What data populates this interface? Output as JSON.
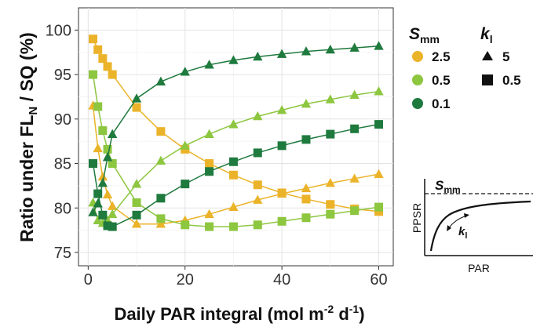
{
  "chart_data": {
    "type": "line",
    "ylabel_main": "Ratio under FL",
    "ylabel_sub": "N",
    "ylabel_tail": " / SQ (%)",
    "xlabel_main": "Daily PAR integral (mol m",
    "xlabel_sup1": "-2",
    "xlabel_mid": " d",
    "xlabel_sup2": "-1",
    "xlabel_end": ")",
    "xlim": [
      -2,
      63
    ],
    "ylim": [
      73.5,
      102.5
    ],
    "xticks": [
      0,
      20,
      40,
      60
    ],
    "yticks": [
      75,
      80,
      85,
      90,
      95,
      100
    ],
    "grid": true,
    "legend_placement": "right",
    "legend": {
      "smm_title": "S",
      "smm_sub": "mm",
      "smm_entries": [
        {
          "label": "2.5",
          "color": "#EBB329"
        },
        {
          "label": "0.5",
          "color": "#8DC63F"
        },
        {
          "label": "0.1",
          "color": "#1F7A3E"
        }
      ],
      "kl_title": "k",
      "kl_sub": "l",
      "kl_entries": [
        {
          "label": "5",
          "shape": "triangle"
        },
        {
          "label": "0.5",
          "shape": "square"
        }
      ]
    },
    "series": [
      {
        "smm": "2.5",
        "kl": "5",
        "color": "#EBB329",
        "marker": "triangle",
        "x": [
          1,
          2,
          3,
          4,
          5,
          10,
          15,
          20,
          25,
          30,
          35,
          40,
          45,
          50,
          55,
          60
        ],
        "y": [
          91.5,
          86.7,
          83.5,
          81.5,
          80.2,
          78.2,
          78.2,
          78.6,
          79.3,
          80.1,
          80.9,
          81.6,
          82.2,
          82.8,
          83.3,
          83.8
        ]
      },
      {
        "smm": "2.5",
        "kl": "0.5",
        "color": "#EBB329",
        "marker": "square",
        "x": [
          1,
          2,
          3,
          4,
          5,
          10,
          15,
          20,
          25,
          30,
          35,
          40,
          45,
          50,
          55,
          60
        ],
        "y": [
          99,
          97.8,
          96.8,
          95.9,
          95,
          91.3,
          88.6,
          86.6,
          85,
          83.7,
          82.6,
          81.7,
          81,
          80.4,
          79.9,
          79.6
        ]
      },
      {
        "smm": "0.5",
        "kl": "5",
        "color": "#8DC63F",
        "marker": "triangle",
        "x": [
          1,
          2,
          3,
          4,
          5,
          10,
          15,
          20,
          25,
          30,
          35,
          40,
          45,
          50,
          55,
          60
        ],
        "y": [
          80.6,
          78.6,
          78.3,
          78.6,
          79.3,
          82.7,
          85.3,
          87,
          88.3,
          89.4,
          90.3,
          91,
          91.7,
          92.2,
          92.7,
          93.1
        ]
      },
      {
        "smm": "0.5",
        "kl": "0.5",
        "color": "#8DC63F",
        "marker": "square",
        "x": [
          1,
          2,
          3,
          4,
          5,
          10,
          15,
          20,
          25,
          30,
          35,
          40,
          45,
          50,
          55,
          60
        ],
        "y": [
          95,
          91.4,
          88.7,
          86.6,
          85,
          80.6,
          78.8,
          78.1,
          77.9,
          77.9,
          78.1,
          78.5,
          78.9,
          79.3,
          79.7,
          80.1
        ]
      },
      {
        "smm": "0.1",
        "kl": "5",
        "color": "#1F7A3E",
        "marker": "triangle",
        "x": [
          1,
          2,
          3,
          4,
          5,
          10,
          15,
          20,
          25,
          30,
          35,
          40,
          45,
          50,
          55,
          60
        ],
        "y": [
          79.5,
          80.5,
          82.8,
          85.7,
          88.3,
          92.3,
          94.2,
          95.3,
          96.1,
          96.6,
          97,
          97.3,
          97.6,
          97.8,
          98,
          98.2
        ]
      },
      {
        "smm": "0.1",
        "kl": "0.5",
        "color": "#1F7A3E",
        "marker": "square",
        "x": [
          1,
          2,
          3,
          4,
          5,
          10,
          15,
          20,
          25,
          30,
          35,
          40,
          45,
          50,
          55,
          60
        ],
        "y": [
          85,
          81.6,
          79.2,
          78,
          77.9,
          79.2,
          81.1,
          82.7,
          84.1,
          85.2,
          86.2,
          87,
          87.7,
          88.3,
          88.9,
          89.4
        ]
      }
    ]
  },
  "inset": {
    "title": "S",
    "title_sub": "mm",
    "ylabel": "PPSR",
    "xlabel": "PAR",
    "annotation": "k",
    "annotation_sub": "l"
  }
}
